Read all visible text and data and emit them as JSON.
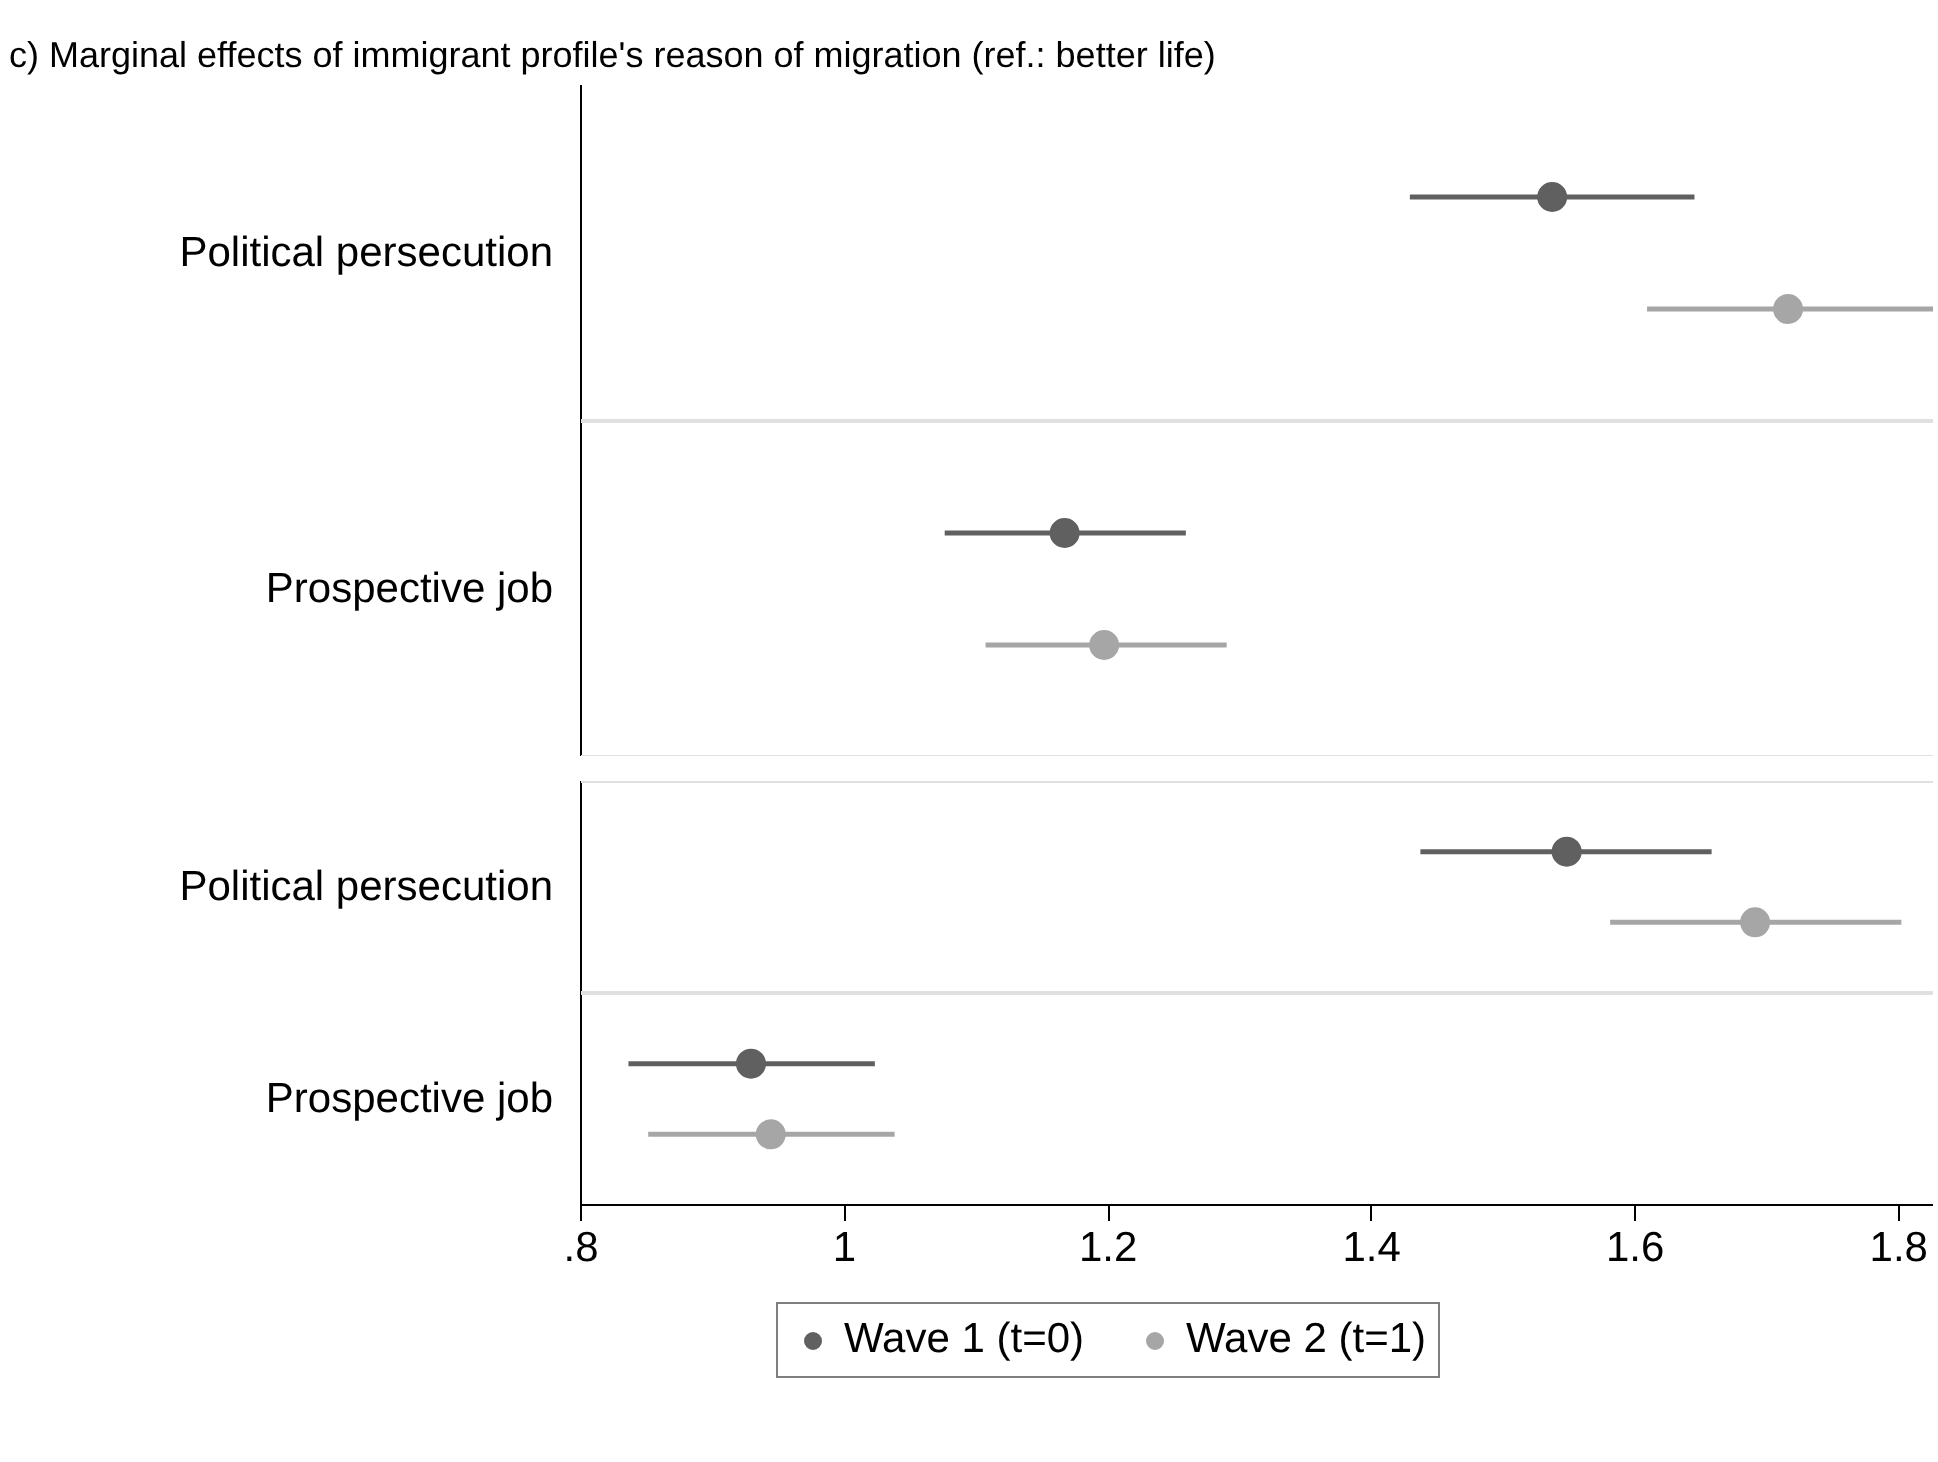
{
  "chart_data": [
    {
      "type": "scatter",
      "orientation": "horizontal",
      "title": "c) Marginal effects of immigrant profile's reason of migration (ref.: better life)",
      "categories": [
        "Political persecution",
        "Prospective job"
      ],
      "series": [
        {
          "color": "#606060",
          "values": [
            1.537,
            1.167
          ],
          "errors": [
            [
              1.429,
              1.645
            ],
            [
              1.076,
              1.259
            ]
          ]
        },
        {
          "color": "#a6a6a6",
          "values": [
            1.716,
            1.197
          ],
          "errors": [
            [
              1.609,
              1.826
            ],
            [
              1.107,
              1.29
            ]
          ]
        }
      ],
      "xlim": [
        0.8,
        1.826
      ],
      "tick_labels": "y",
      "marker": "circle"
    },
    {
      "type": "scatter",
      "orientation": "horizontal",
      "categories": [
        "Political persecution",
        "Prospective job"
      ],
      "series": [
        {
          "name": "Wave 1 (t=0)",
          "color": "#606060",
          "values": [
            1.548,
            0.929
          ],
          "errors": [
            [
              1.437,
              1.658
            ],
            [
              0.836,
              1.023
            ]
          ]
        },
        {
          "name": "Wave 2 (t=1)",
          "color": "#a6a6a6",
          "values": [
            1.691,
            0.944
          ],
          "errors": [
            [
              1.581,
              1.802
            ],
            [
              0.851,
              1.038
            ]
          ]
        }
      ],
      "xlim": [
        0.8,
        1.826
      ],
      "xticks": [
        {
          "value": 0.8,
          "label": ".8"
        },
        1,
        1.2,
        1.4,
        1.6,
        1.8
      ],
      "legend": "bottom",
      "marker": "circle"
    }
  ]
}
